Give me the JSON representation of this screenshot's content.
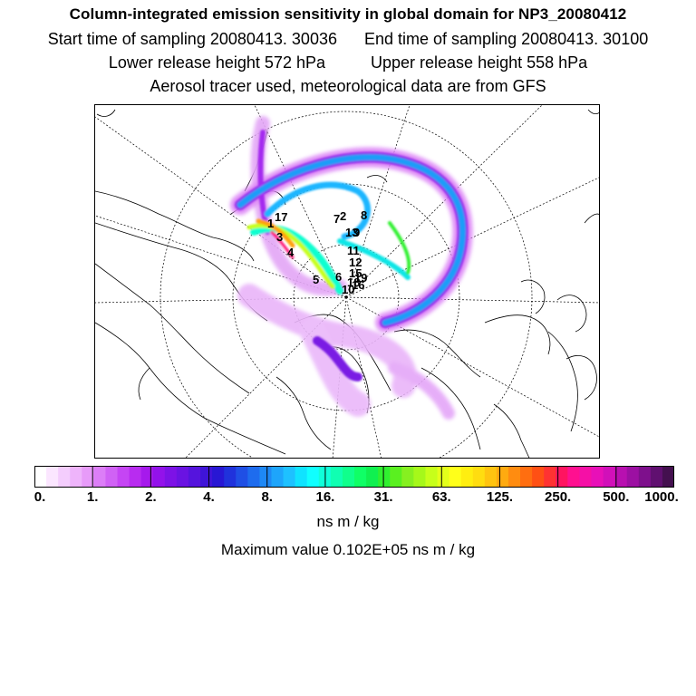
{
  "title": {
    "line1": "Column-integrated emission sensitivity in global domain for NP3_20080412",
    "start_label": "Start time of sampling 20080413. 30036",
    "end_label": "End time of sampling 20080413. 30100",
    "lower_label": "Lower release height  572 hPa",
    "upper_label": "Upper release height  558 hPa",
    "line4": "Aerosol tracer used, meteorological data are from GFS"
  },
  "map": {
    "projection": "polar stereographic, North Pole",
    "markers": [
      {
        "label": "1"
      },
      {
        "label": "2"
      },
      {
        "label": "3"
      },
      {
        "label": "4"
      },
      {
        "label": "5"
      },
      {
        "label": "6"
      },
      {
        "label": "7"
      },
      {
        "label": "8"
      },
      {
        "label": "9"
      },
      {
        "label": "10"
      },
      {
        "label": "11"
      },
      {
        "label": "12"
      },
      {
        "label": "13"
      },
      {
        "label": "15"
      },
      {
        "label": "16"
      },
      {
        "label": "17"
      },
      {
        "label": "18"
      },
      {
        "label": "19"
      }
    ]
  },
  "colorbar": {
    "colors": [
      "#ffffff",
      "#fbe6ff",
      "#f4cdfd",
      "#eeb4fb",
      "#e79bf9",
      "#dc7ef7",
      "#d062f5",
      "#c545f4",
      "#b82cf0",
      "#a619ec",
      "#9312ea",
      "#7d12e6",
      "#6a13e2",
      "#5514dd",
      "#3f14d8",
      "#2817d4",
      "#2032dc",
      "#1f4fe5",
      "#1e6cee",
      "#1e88f5",
      "#1ea5fb",
      "#1ec1ff",
      "#10e3ff",
      "#10ffff",
      "#10ffd9",
      "#10ffb2",
      "#10ff8c",
      "#10ff66",
      "#10f050",
      "#30f030",
      "#5af020",
      "#86f020",
      "#a6f81a",
      "#c7ff1a",
      "#e4ff1a",
      "#ffff1a",
      "#ffee10",
      "#ffdd10",
      "#ffc410",
      "#ffaa10",
      "#ff8c10",
      "#ff6e10",
      "#ff5014",
      "#ff3232",
      "#ff1460",
      "#ff1090",
      "#f510a6",
      "#e810b8",
      "#d110b9",
      "#b810b0",
      "#9c10a2",
      "#7e108c",
      "#601070",
      "#44104f"
    ],
    "tick_labels": [
      "0.",
      "1.",
      "2.",
      "4.",
      "8.",
      "16.",
      "31.",
      "63.",
      "125.",
      "250.",
      "500.",
      "1000."
    ],
    "unit": "ns m / kg"
  },
  "max_value_label": "Maximum value  0.102E+05 ns m / kg"
}
